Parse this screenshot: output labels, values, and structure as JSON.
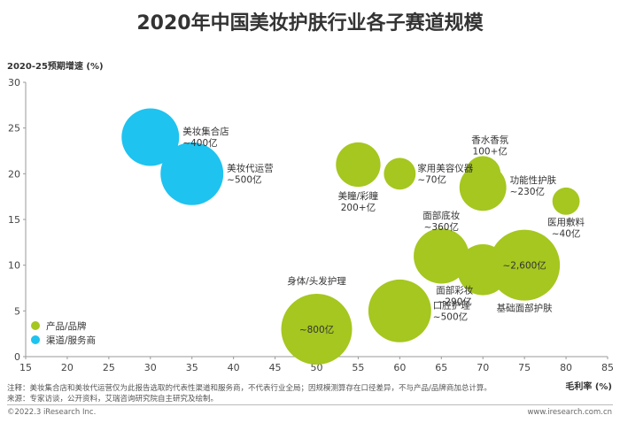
{
  "chart_data": {
    "type": "scatter",
    "title": "2020年中国美妆护肤行业各子赛道规模",
    "xlabel": "毛利率 (%)",
    "ylabel": "2020-25预期增速 (%)",
    "xlim": [
      15,
      85
    ],
    "ylim": [
      0,
      30
    ],
    "x_ticks": [
      "15",
      "20",
      "25",
      "30",
      "35",
      "40",
      "45",
      "50",
      "55",
      "60",
      "65",
      "70",
      "75",
      "80",
      "85"
    ],
    "y_ticks": [
      "0",
      "5",
      "10",
      "15",
      "20",
      "25",
      "30"
    ],
    "grid": false,
    "legend_position": "bottom-left",
    "colors": {
      "product": "#a5c71f",
      "channel": "#1ec3f0"
    },
    "series": [
      {
        "name": "产品/品牌",
        "points": [
          {
            "label": "美瞳/彩瞳",
            "value": "200+亿",
            "x": 55,
            "y": 21,
            "size": 200
          },
          {
            "label": "家用美容仪器",
            "value": "~70亿",
            "x": 60,
            "y": 20,
            "size": 70
          },
          {
            "label": "香水香氛",
            "value": "100+亿",
            "x": 70,
            "y": 20,
            "size": 100
          },
          {
            "label": "功能性护肤",
            "value": "~230亿",
            "x": 70,
            "y": 18.5,
            "size": 230
          },
          {
            "label": "医用敷料",
            "value": "~40亿",
            "x": 80,
            "y": 17,
            "size": 40
          },
          {
            "label": "面部底妆",
            "value": "~360亿",
            "x": 65,
            "y": 11,
            "size": 360
          },
          {
            "label": "面部彩妆",
            "value": "~290亿",
            "x": 70,
            "y": 9.5,
            "size": 290
          },
          {
            "label": "基础面部护肤",
            "value": "~2,600亿",
            "x": 75,
            "y": 10,
            "size": 2600
          },
          {
            "label": "口腔护理",
            "value": "~500亿",
            "x": 60,
            "y": 5,
            "size": 500
          },
          {
            "label": "身体/头发护理",
            "value": "~800亿",
            "x": 50,
            "y": 3,
            "size": 800
          }
        ]
      },
      {
        "name": "渠道/服务商",
        "points": [
          {
            "label": "美妆集合店",
            "value": "~400亿",
            "x": 30,
            "y": 24,
            "size": 400
          },
          {
            "label": "美妆代运营",
            "value": "~500亿",
            "x": 35,
            "y": 20,
            "size": 500
          }
        ]
      }
    ]
  },
  "footer": {
    "note": "注释：美妆集合店和美妆代运营仅为此报告选取的代表性渠道和服务商，不代表行业全局；因规模测算存在口径差异，不与产品/品牌商加总计算。",
    "source": "来源：专家访谈，公开资料，艾瑞咨询研究院自主研究及绘制。",
    "copyright": "©2022.3 iResearch Inc.",
    "site": "www.iresearch.com.cn"
  }
}
